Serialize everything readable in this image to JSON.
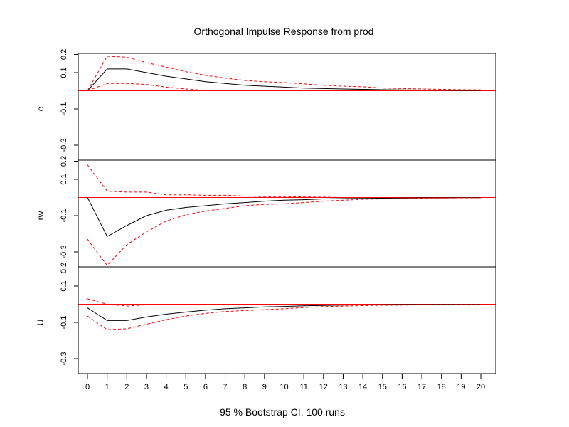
{
  "title": "Orthogonal Impulse Response from prod",
  "xlabel": "95 % Bootstrap CI,  100 runs",
  "colors": {
    "response": "#000000",
    "ci": "#ff0000",
    "zero": "#ff0000"
  },
  "chart_data": {
    "type": "line",
    "title": "Orthogonal Impulse Response from prod",
    "xlabel": "95 % Bootstrap CI,  100 runs",
    "x": [
      0,
      1,
      2,
      3,
      4,
      5,
      6,
      7,
      8,
      9,
      10,
      11,
      12,
      13,
      14,
      15,
      16,
      17,
      18,
      19,
      20
    ],
    "xlim": [
      0,
      20
    ],
    "ylim": [
      -0.4,
      0.2
    ],
    "yticks": [
      "0.2",
      "0.1",
      "-0.1",
      "-0.3"
    ],
    "ytick_values": [
      0.2,
      0.1,
      -0.1,
      -0.3
    ],
    "grid": false,
    "panels": [
      {
        "ylabel": "e",
        "series": [
          {
            "role": "response",
            "values": [
              0.0,
              0.12,
              0.12,
              0.1,
              0.08,
              0.065,
              0.05,
              0.04,
              0.03,
              0.025,
              0.02,
              0.015,
              0.012,
              0.01,
              0.008,
              0.006,
              0.005,
              0.004,
              0.003,
              0.002,
              0.002
            ]
          },
          {
            "role": "upper",
            "values": [
              0.0,
              0.19,
              0.185,
              0.155,
              0.13,
              0.105,
              0.085,
              0.07,
              0.057,
              0.05,
              0.045,
              0.038,
              0.03,
              0.025,
              0.022,
              0.015,
              0.012,
              0.01,
              0.008,
              0.006,
              0.005
            ]
          },
          {
            "role": "lower",
            "values": [
              0.0,
              0.04,
              0.04,
              0.035,
              0.02,
              0.01,
              0.002,
              0.0,
              0.0,
              null,
              null,
              null,
              null,
              null,
              null,
              null,
              null,
              null,
              null,
              null,
              null
            ]
          }
        ]
      },
      {
        "ylabel": "rw",
        "series": [
          {
            "role": "response",
            "values": [
              0.0,
              -0.215,
              -0.155,
              -0.1,
              -0.07,
              -0.055,
              -0.045,
              -0.035,
              -0.028,
              -0.02,
              -0.015,
              -0.012,
              -0.008,
              -0.006,
              -0.005,
              -0.004,
              -0.003,
              -0.002,
              -0.002,
              -0.001,
              -0.001
            ]
          },
          {
            "role": "upper",
            "values": [
              0.18,
              0.035,
              0.03,
              0.03,
              0.015,
              0.015,
              0.012,
              0.012,
              0.008,
              0.005,
              0.005,
              0.003,
              0.002,
              0.0,
              null,
              null,
              null,
              null,
              null,
              null,
              null
            ]
          },
          {
            "role": "lower",
            "values": [
              -0.23,
              -0.375,
              -0.26,
              -0.19,
              -0.13,
              -0.095,
              -0.075,
              -0.06,
              -0.045,
              -0.038,
              -0.035,
              -0.028,
              -0.02,
              -0.015,
              -0.01,
              -0.008,
              -0.005,
              -0.004,
              -0.003,
              -0.002,
              -0.002
            ]
          }
        ]
      },
      {
        "ylabel": "U",
        "series": [
          {
            "role": "response",
            "values": [
              -0.02,
              -0.09,
              -0.09,
              -0.07,
              -0.055,
              -0.043,
              -0.033,
              -0.025,
              -0.02,
              -0.015,
              -0.012,
              -0.009,
              -0.007,
              -0.005,
              -0.004,
              -0.003,
              -0.002,
              -0.002,
              -0.001,
              -0.001,
              -0.001
            ]
          },
          {
            "role": "upper",
            "values": [
              0.03,
              0.0,
              -0.01,
              -0.003,
              0.0,
              0.0,
              0.0,
              null,
              null,
              null,
              null,
              null,
              null,
              null,
              null,
              null,
              null,
              null,
              null,
              null,
              null
            ]
          },
          {
            "role": "lower",
            "values": [
              -0.065,
              -0.14,
              -0.135,
              -0.11,
              -0.085,
              -0.065,
              -0.05,
              -0.04,
              -0.035,
              -0.03,
              -0.025,
              -0.018,
              -0.013,
              -0.01,
              -0.008,
              -0.006,
              -0.005,
              -0.003,
              -0.002,
              -0.001,
              -0.001
            ]
          }
        ]
      }
    ]
  }
}
